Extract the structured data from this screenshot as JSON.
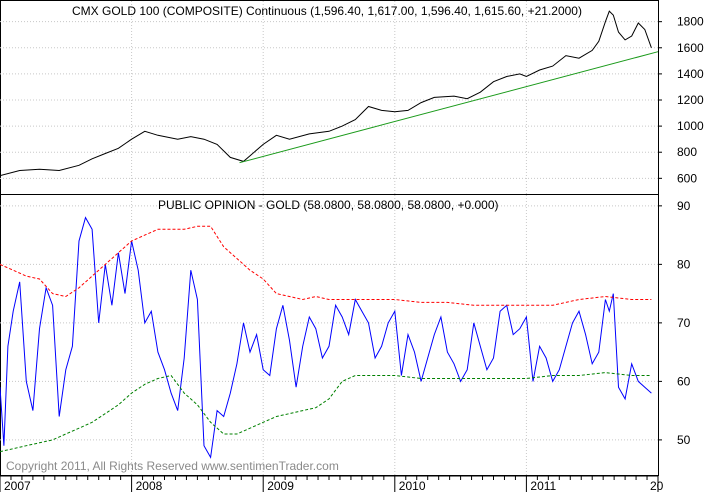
{
  "chart_data": [
    {
      "type": "line",
      "title": "CMX GOLD 100 (COMPOSITE) Continuous (1,596.40, 1,617.00, 1,596.40, 1,615.60, +21.2000)",
      "y_ticks": [
        "600",
        "800",
        "1000",
        "1200",
        "1400",
        "1600",
        "1800"
      ],
      "ylim": [
        480,
        1920
      ],
      "xlim": [
        2007.0,
        2012.0
      ],
      "grid": true,
      "series": [
        {
          "color": "#000000",
          "x": [
            2007.0,
            2007.15,
            2007.3,
            2007.45,
            2007.6,
            2007.7,
            2007.8,
            2007.9,
            2008.0,
            2008.1,
            2008.2,
            2008.35,
            2008.45,
            2008.55,
            2008.65,
            2008.75,
            2008.85,
            2009.0,
            2009.1,
            2009.2,
            2009.35,
            2009.5,
            2009.6,
            2009.7,
            2009.8,
            2009.9,
            2010.0,
            2010.1,
            2010.2,
            2010.3,
            2010.45,
            2010.55,
            2010.65,
            2010.75,
            2010.85,
            2010.95,
            2011.0,
            2011.1,
            2011.2,
            2011.3,
            2011.4,
            2011.5,
            2011.55,
            2011.6,
            2011.63,
            2011.66,
            2011.7,
            2011.75,
            2011.8,
            2011.85,
            2011.9,
            2011.95
          ],
          "y": [
            620,
            660,
            670,
            660,
            700,
            750,
            790,
            830,
            900,
            960,
            930,
            900,
            920,
            900,
            860,
            760,
            730,
            860,
            930,
            900,
            940,
            960,
            1000,
            1050,
            1150,
            1120,
            1110,
            1120,
            1180,
            1220,
            1230,
            1210,
            1260,
            1340,
            1380,
            1400,
            1380,
            1430,
            1460,
            1540,
            1520,
            1580,
            1650,
            1800,
            1880,
            1850,
            1720,
            1660,
            1690,
            1790,
            1740,
            1600
          ]
        },
        {
          "color": "#1a9a1a",
          "x": [
            2008.82,
            2012.0
          ],
          "y": [
            720,
            1570
          ]
        }
      ]
    },
    {
      "type": "line",
      "title": "PUBLIC OPINION - GOLD (58.0800, 58.0800, 58.0800, +0.000)",
      "y_ticks": [
        "50",
        "60",
        "70",
        "80",
        "90"
      ],
      "ylim": [
        44,
        91
      ],
      "xlim": [
        2007.0,
        2012.0
      ],
      "x_ticks": [
        "2007",
        "2008",
        "2009",
        "2010",
        "2011",
        "20"
      ],
      "grid": true,
      "series": [
        {
          "color": "#0000ff",
          "x": [
            2007.0,
            2007.03,
            2007.06,
            2007.1,
            2007.15,
            2007.2,
            2007.25,
            2007.3,
            2007.35,
            2007.4,
            2007.45,
            2007.5,
            2007.55,
            2007.6,
            2007.65,
            2007.7,
            2007.75,
            2007.8,
            2007.85,
            2007.9,
            2007.95,
            2008.0,
            2008.05,
            2008.1,
            2008.15,
            2008.2,
            2008.25,
            2008.3,
            2008.35,
            2008.4,
            2008.45,
            2008.5,
            2008.55,
            2008.6,
            2008.65,
            2008.7,
            2008.75,
            2008.8,
            2008.85,
            2008.9,
            2008.95,
            2009.0,
            2009.05,
            2009.1,
            2009.15,
            2009.2,
            2009.25,
            2009.3,
            2009.35,
            2009.4,
            2009.45,
            2009.5,
            2009.55,
            2009.6,
            2009.65,
            2009.7,
            2009.75,
            2009.8,
            2009.85,
            2009.9,
            2009.95,
            2010.0,
            2010.05,
            2010.1,
            2010.15,
            2010.2,
            2010.25,
            2010.3,
            2010.35,
            2010.4,
            2010.45,
            2010.5,
            2010.55,
            2010.6,
            2010.65,
            2010.7,
            2010.75,
            2010.8,
            2010.85,
            2010.9,
            2010.95,
            2011.0,
            2011.05,
            2011.1,
            2011.15,
            2011.2,
            2011.25,
            2011.3,
            2011.35,
            2011.4,
            2011.45,
            2011.5,
            2011.55,
            2011.6,
            2011.63,
            2011.66,
            2011.7,
            2011.75,
            2011.8,
            2011.85,
            2011.9,
            2011.95
          ],
          "y": [
            59,
            49,
            66,
            72,
            77,
            60,
            55,
            69,
            76,
            73,
            54,
            62,
            66,
            84,
            88,
            86,
            70,
            80,
            73,
            82,
            75,
            84,
            79,
            70,
            72,
            65,
            62,
            58,
            55,
            64,
            79,
            74,
            49,
            47,
            55,
            54,
            58,
            63,
            70,
            65,
            68,
            62,
            61,
            69,
            73,
            67,
            59,
            66,
            71,
            69,
            64,
            66,
            73,
            71,
            68,
            74,
            72,
            70,
            64,
            66,
            70,
            72,
            61,
            68,
            65,
            60,
            64,
            68,
            71,
            65,
            63,
            60,
            62,
            70,
            66,
            62,
            64,
            72,
            73,
            68,
            69,
            71,
            60,
            66,
            64,
            60,
            62,
            66,
            70,
            72,
            68,
            63,
            65,
            74,
            72,
            75,
            59,
            57,
            63,
            60,
            59,
            58
          ]
        },
        {
          "color": "#ff0000",
          "x": [
            2007.0,
            2007.1,
            2007.2,
            2007.3,
            2007.4,
            2007.5,
            2007.6,
            2007.7,
            2007.8,
            2007.9,
            2008.0,
            2008.1,
            2008.2,
            2008.3,
            2008.4,
            2008.5,
            2008.6,
            2008.7,
            2008.8,
            2008.9,
            2009.0,
            2009.1,
            2009.2,
            2009.3,
            2009.4,
            2009.5,
            2009.6,
            2009.7,
            2009.8,
            2009.9,
            2010.0,
            2010.2,
            2010.4,
            2010.6,
            2010.8,
            2011.0,
            2011.2,
            2011.4,
            2011.6,
            2011.8,
            2011.95
          ],
          "y": [
            80,
            79,
            78,
            77.5,
            75,
            74.5,
            76,
            78,
            80,
            82,
            84,
            85,
            86,
            86,
            86,
            86.5,
            86.5,
            83,
            81,
            79,
            77.5,
            75,
            74.5,
            74,
            74.5,
            74,
            74,
            74,
            74,
            74,
            74,
            73.5,
            73.5,
            73,
            73,
            73,
            73,
            74,
            74.5,
            74,
            74
          ]
        },
        {
          "color": "#008000",
          "x": [
            2007.0,
            2007.1,
            2007.2,
            2007.3,
            2007.4,
            2007.5,
            2007.6,
            2007.7,
            2007.8,
            2007.9,
            2008.0,
            2008.1,
            2008.2,
            2008.3,
            2008.4,
            2008.5,
            2008.6,
            2008.7,
            2008.8,
            2008.9,
            2009.0,
            2009.1,
            2009.2,
            2009.3,
            2009.4,
            2009.5,
            2009.6,
            2009.7,
            2009.8,
            2009.9,
            2010.0,
            2010.2,
            2010.4,
            2010.6,
            2010.8,
            2011.0,
            2011.2,
            2011.4,
            2011.6,
            2011.8,
            2011.95
          ],
          "y": [
            48,
            48.5,
            49,
            49.5,
            50,
            51,
            52,
            53,
            54.5,
            56,
            58,
            59.5,
            60.5,
            61,
            58,
            56,
            53,
            51,
            51,
            52,
            53,
            54,
            54.5,
            55,
            55.5,
            57,
            60,
            61,
            61,
            61,
            61,
            60.5,
            60.5,
            60.5,
            60.5,
            60.5,
            61,
            61,
            61.5,
            61,
            61
          ]
        }
      ]
    }
  ],
  "copyright": "Copyright 2011, All Rights Reserved  www.sentimenTrader.com"
}
